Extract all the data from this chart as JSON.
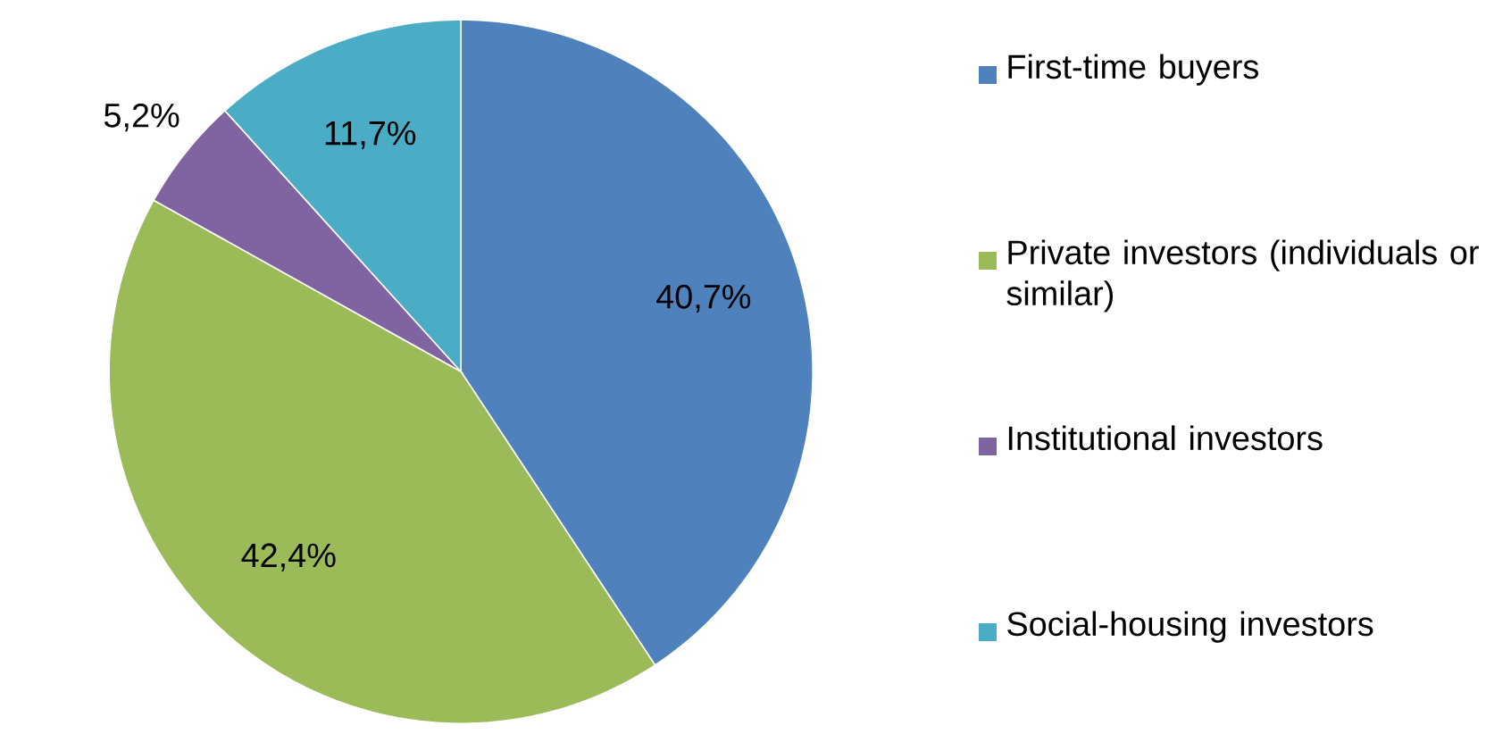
{
  "chart_data": {
    "type": "pie",
    "categories": [
      "First-time buyers",
      "Private investors (individuals or similar)",
      "Institutional investors",
      "Social-housing investors"
    ],
    "values": [
      40.7,
      42.4,
      5.2,
      11.7
    ],
    "colors": [
      "#4f81bd",
      "#9bbb59",
      "#8064a2",
      "#4bacc6"
    ],
    "value_labels": [
      "40,7%",
      "42,4%",
      "5,2%",
      "11,7%"
    ],
    "legend": "right"
  }
}
